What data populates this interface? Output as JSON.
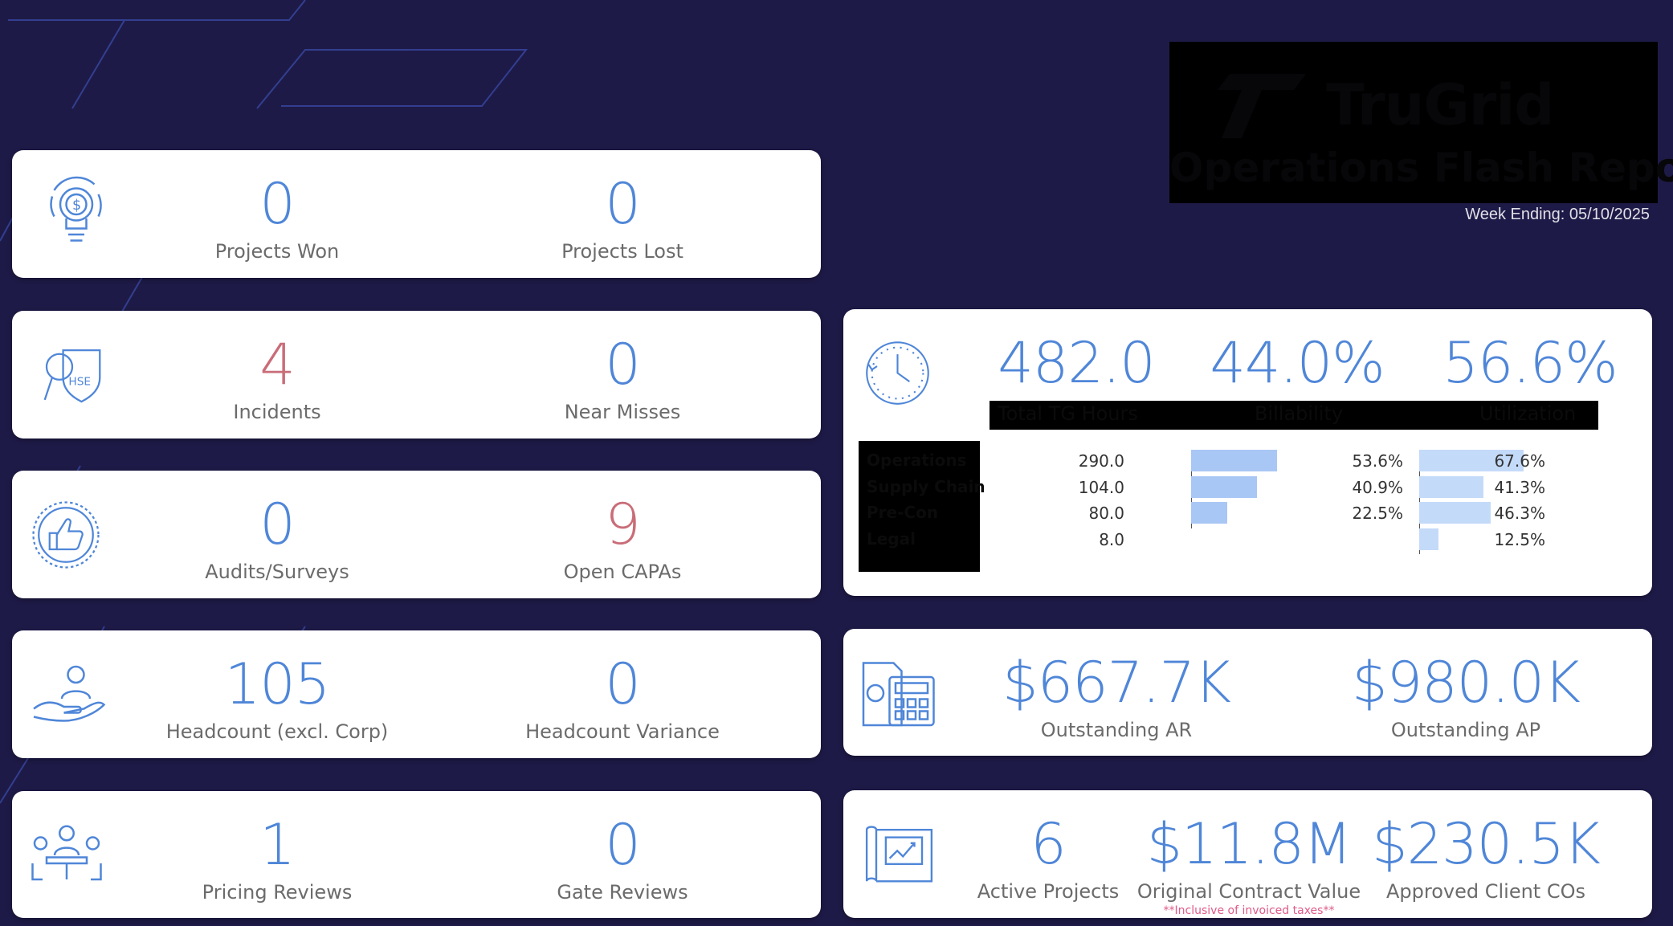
{
  "colors": {
    "background": "#1e1a47",
    "value_blue": "#4f86d8",
    "value_red": "#c96d78",
    "label_grey": "#6b6b6b",
    "billability_bar": "#a9c7f5",
    "utilization_bar": "#c4daf9"
  },
  "header": {
    "brand": "TruGrid",
    "report_title": "Operations Flash Report",
    "week_ending": "Week Ending: 05/10/2025"
  },
  "cards": {
    "projects": {
      "icon": "lightbulb-dollar-icon",
      "won_value": "0",
      "won_label": "Projects Won",
      "lost_value": "0",
      "lost_label": "Projects Lost"
    },
    "safety": {
      "icon": "hse-shield-icon",
      "incidents_value": "4",
      "incidents_label": "Incidents",
      "nearmiss_value": "0",
      "nearmiss_label": "Near Misses"
    },
    "quality": {
      "icon": "thumbs-up-icon",
      "audits_value": "0",
      "audits_label": "Audits/Surveys",
      "capas_value": "9",
      "capas_label": "Open CAPAs"
    },
    "people": {
      "icon": "hand-person-icon",
      "headcount_value": "105",
      "headcount_label": "Headcount (excl. Corp)",
      "variance_value": "0",
      "variance_label": "Headcount Variance"
    },
    "reviews": {
      "icon": "meeting-icon",
      "pricing_value": "1",
      "pricing_label": "Pricing Reviews",
      "gate_value": "0",
      "gate_label": "Gate Reviews"
    },
    "hours": {
      "icon": "clock-icon",
      "total_value": "482.0",
      "total_label": "Total TG Hours",
      "billability_value": "44.0%",
      "billability_label": "Billability",
      "utilization_value": "56.6%",
      "utilization_label": "Utilization"
    },
    "finance": {
      "icon": "financial-report-icon",
      "ar_value": "$667.7K",
      "ar_label": "Outstanding AR",
      "ap_value": "$980.0K",
      "ap_label": "Outstanding AP"
    },
    "contracts": {
      "icon": "blueprint-chart-icon",
      "active_value": "6",
      "active_label": "Active Projects",
      "ocv_value": "$11.8M",
      "ocv_label": "Original Contract Value",
      "cos_value": "$230.5K",
      "cos_label": "Approved Client COs",
      "note": "**Inclusive of invoiced taxes**"
    }
  },
  "chart_data": {
    "type": "table",
    "columns": [
      "",
      "Hours",
      "Billability",
      "Utilization"
    ],
    "rows": [
      {
        "department": "Operations",
        "hours": "290.0",
        "billability": "53.6%",
        "billability_value": 53.6,
        "utilization": "67.6%",
        "utilization_value": 67.6
      },
      {
        "department": "Supply Chain",
        "hours": "104.0",
        "billability": "40.9%",
        "billability_value": 40.9,
        "utilization": "41.3%",
        "utilization_value": 41.3
      },
      {
        "department": "Pre-Con",
        "hours": "80.0",
        "billability": "22.5%",
        "billability_value": 22.5,
        "utilization": "46.3%",
        "utilization_value": 46.3
      },
      {
        "department": "Legal",
        "hours": "8.0",
        "billability": "",
        "billability_value": 0,
        "utilization": "12.5%",
        "utilization_value": 12.5
      }
    ]
  }
}
